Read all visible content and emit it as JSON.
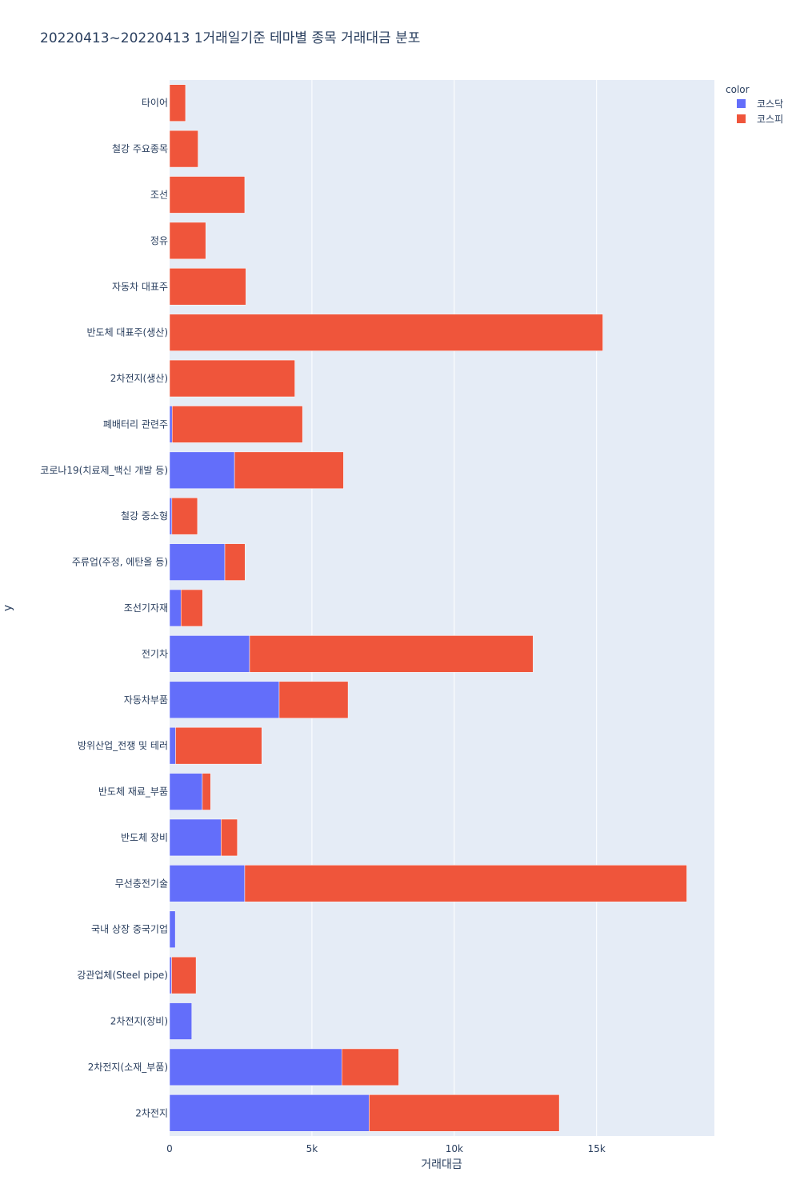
{
  "chart_data": {
    "type": "bar",
    "orientation": "horizontal",
    "barmode": "stack",
    "title": "20220413~20220413 1거래일기준 테마별 종목 거래대금 분포",
    "xlabel": "거래대금",
    "ylabel": "y",
    "xlim": [
      0,
      19140
    ],
    "x_ticks": [
      {
        "value": 0,
        "label": "0"
      },
      {
        "value": 5000,
        "label": "5k"
      },
      {
        "value": 10000,
        "label": "10k"
      },
      {
        "value": 15000,
        "label": "15k"
      }
    ],
    "grid": true,
    "legend": {
      "title": "color",
      "position": "top-right"
    },
    "categories": [
      "2차전지",
      "2차전지(소재_부품)",
      "2차전지(장비)",
      "강관업체(Steel pipe)",
      "국내 상장 중국기업",
      "무선충전기술",
      "반도체 장비",
      "반도체 재료_부품",
      "방위산업_전쟁 및 테러",
      "자동차부품",
      "전기차",
      "조선기자재",
      "주류업(주정, 에탄올 등)",
      "철강 중소형",
      "코로나19(치료제_백신 개발 등)",
      "폐배터리 관련주",
      "2차전지(생산)",
      "반도체 대표주(생산)",
      "자동차 대표주",
      "정유",
      "조선",
      "철강 주요종목",
      "타이어"
    ],
    "series": [
      {
        "name": "코스닥",
        "color": "#636efa",
        "values": [
          7010,
          6050,
          780,
          70,
          200,
          2640,
          1810,
          1150,
          210,
          3850,
          2810,
          400,
          1940,
          80,
          2280,
          90,
          0,
          0,
          0,
          0,
          0,
          0,
          0
        ]
      },
      {
        "name": "코스피",
        "color": "#ef553b",
        "values": [
          6680,
          2000,
          0,
          860,
          0,
          15530,
          570,
          290,
          3030,
          2420,
          9960,
          760,
          710,
          900,
          3830,
          4580,
          4400,
          15220,
          2680,
          1270,
          2640,
          1000,
          560
        ]
      }
    ]
  }
}
